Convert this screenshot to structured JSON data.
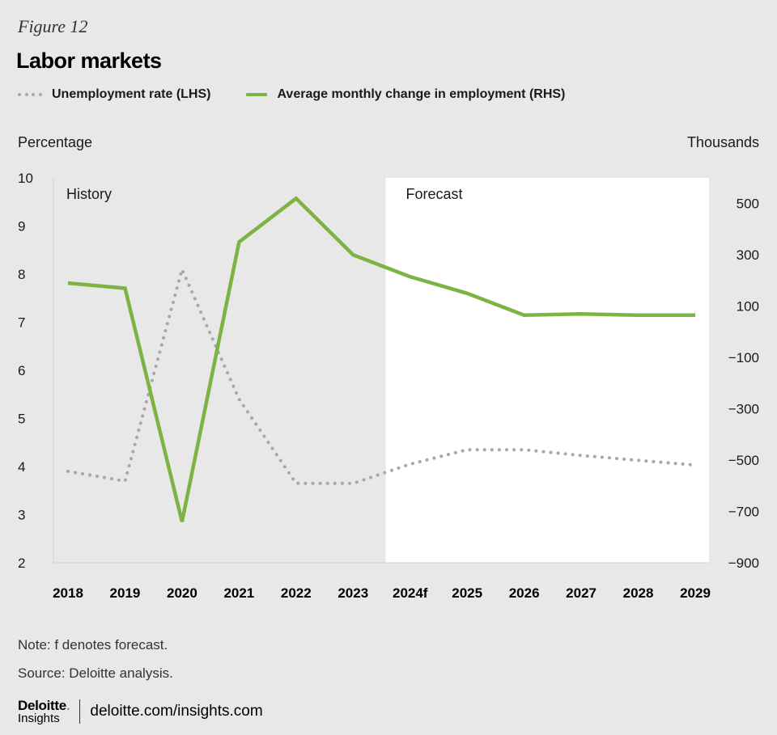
{
  "figure_label": "Figure 12",
  "title": "Labor markets",
  "legend": {
    "unemployment": "Unemployment rate (LHS)",
    "employment": "Average monthly change in employment (RHS)"
  },
  "colors": {
    "background": "#e8e8e8",
    "forecast_panel": "#ffffff",
    "unemployment": "#a8a8a8",
    "employment": "#7cb342",
    "axis_text": "#1a1a1a"
  },
  "chart_data": {
    "type": "line",
    "title": "Labor markets",
    "categories": [
      "2018",
      "2019",
      "2020",
      "2021",
      "2022",
      "2023",
      "2024f",
      "2025",
      "2026",
      "2027",
      "2028",
      "2029"
    ],
    "left_axis": {
      "label": "Percentage",
      "range": [
        2,
        10
      ],
      "ticks": [
        "10",
        "9",
        "8",
        "7",
        "6",
        "5",
        "4",
        "3",
        "2"
      ]
    },
    "right_axis": {
      "label": "Thousands",
      "range": [
        -900,
        600
      ],
      "ticks": [
        "500",
        "300",
        "100",
        "−100",
        "−300",
        "−500",
        "−700",
        "−900"
      ]
    },
    "series": [
      {
        "name": "Unemployment rate (LHS)",
        "axis": "left",
        "style": "dotted",
        "values": [
          3.9,
          3.7,
          8.1,
          5.4,
          3.65,
          3.65,
          4.05,
          4.35,
          4.35,
          4.23,
          4.13,
          4.03
        ]
      },
      {
        "name": "Average monthly change in employment (RHS)",
        "axis": "right",
        "style": "solid",
        "values": [
          190,
          170,
          -740,
          350,
          520,
          300,
          215,
          150,
          65,
          70,
          65,
          65
        ]
      }
    ],
    "annotations": {
      "history": "History",
      "forecast": "Forecast"
    },
    "forecast_start_category": "2024f"
  },
  "notes": {
    "note": "Note: f denotes forecast.",
    "source": "Source: Deloitte analysis."
  },
  "footer": {
    "logo_main": "Deloitte",
    "logo_dot": ".",
    "logo_sub": "Insights",
    "url": "deloitte.com/insights.com"
  }
}
